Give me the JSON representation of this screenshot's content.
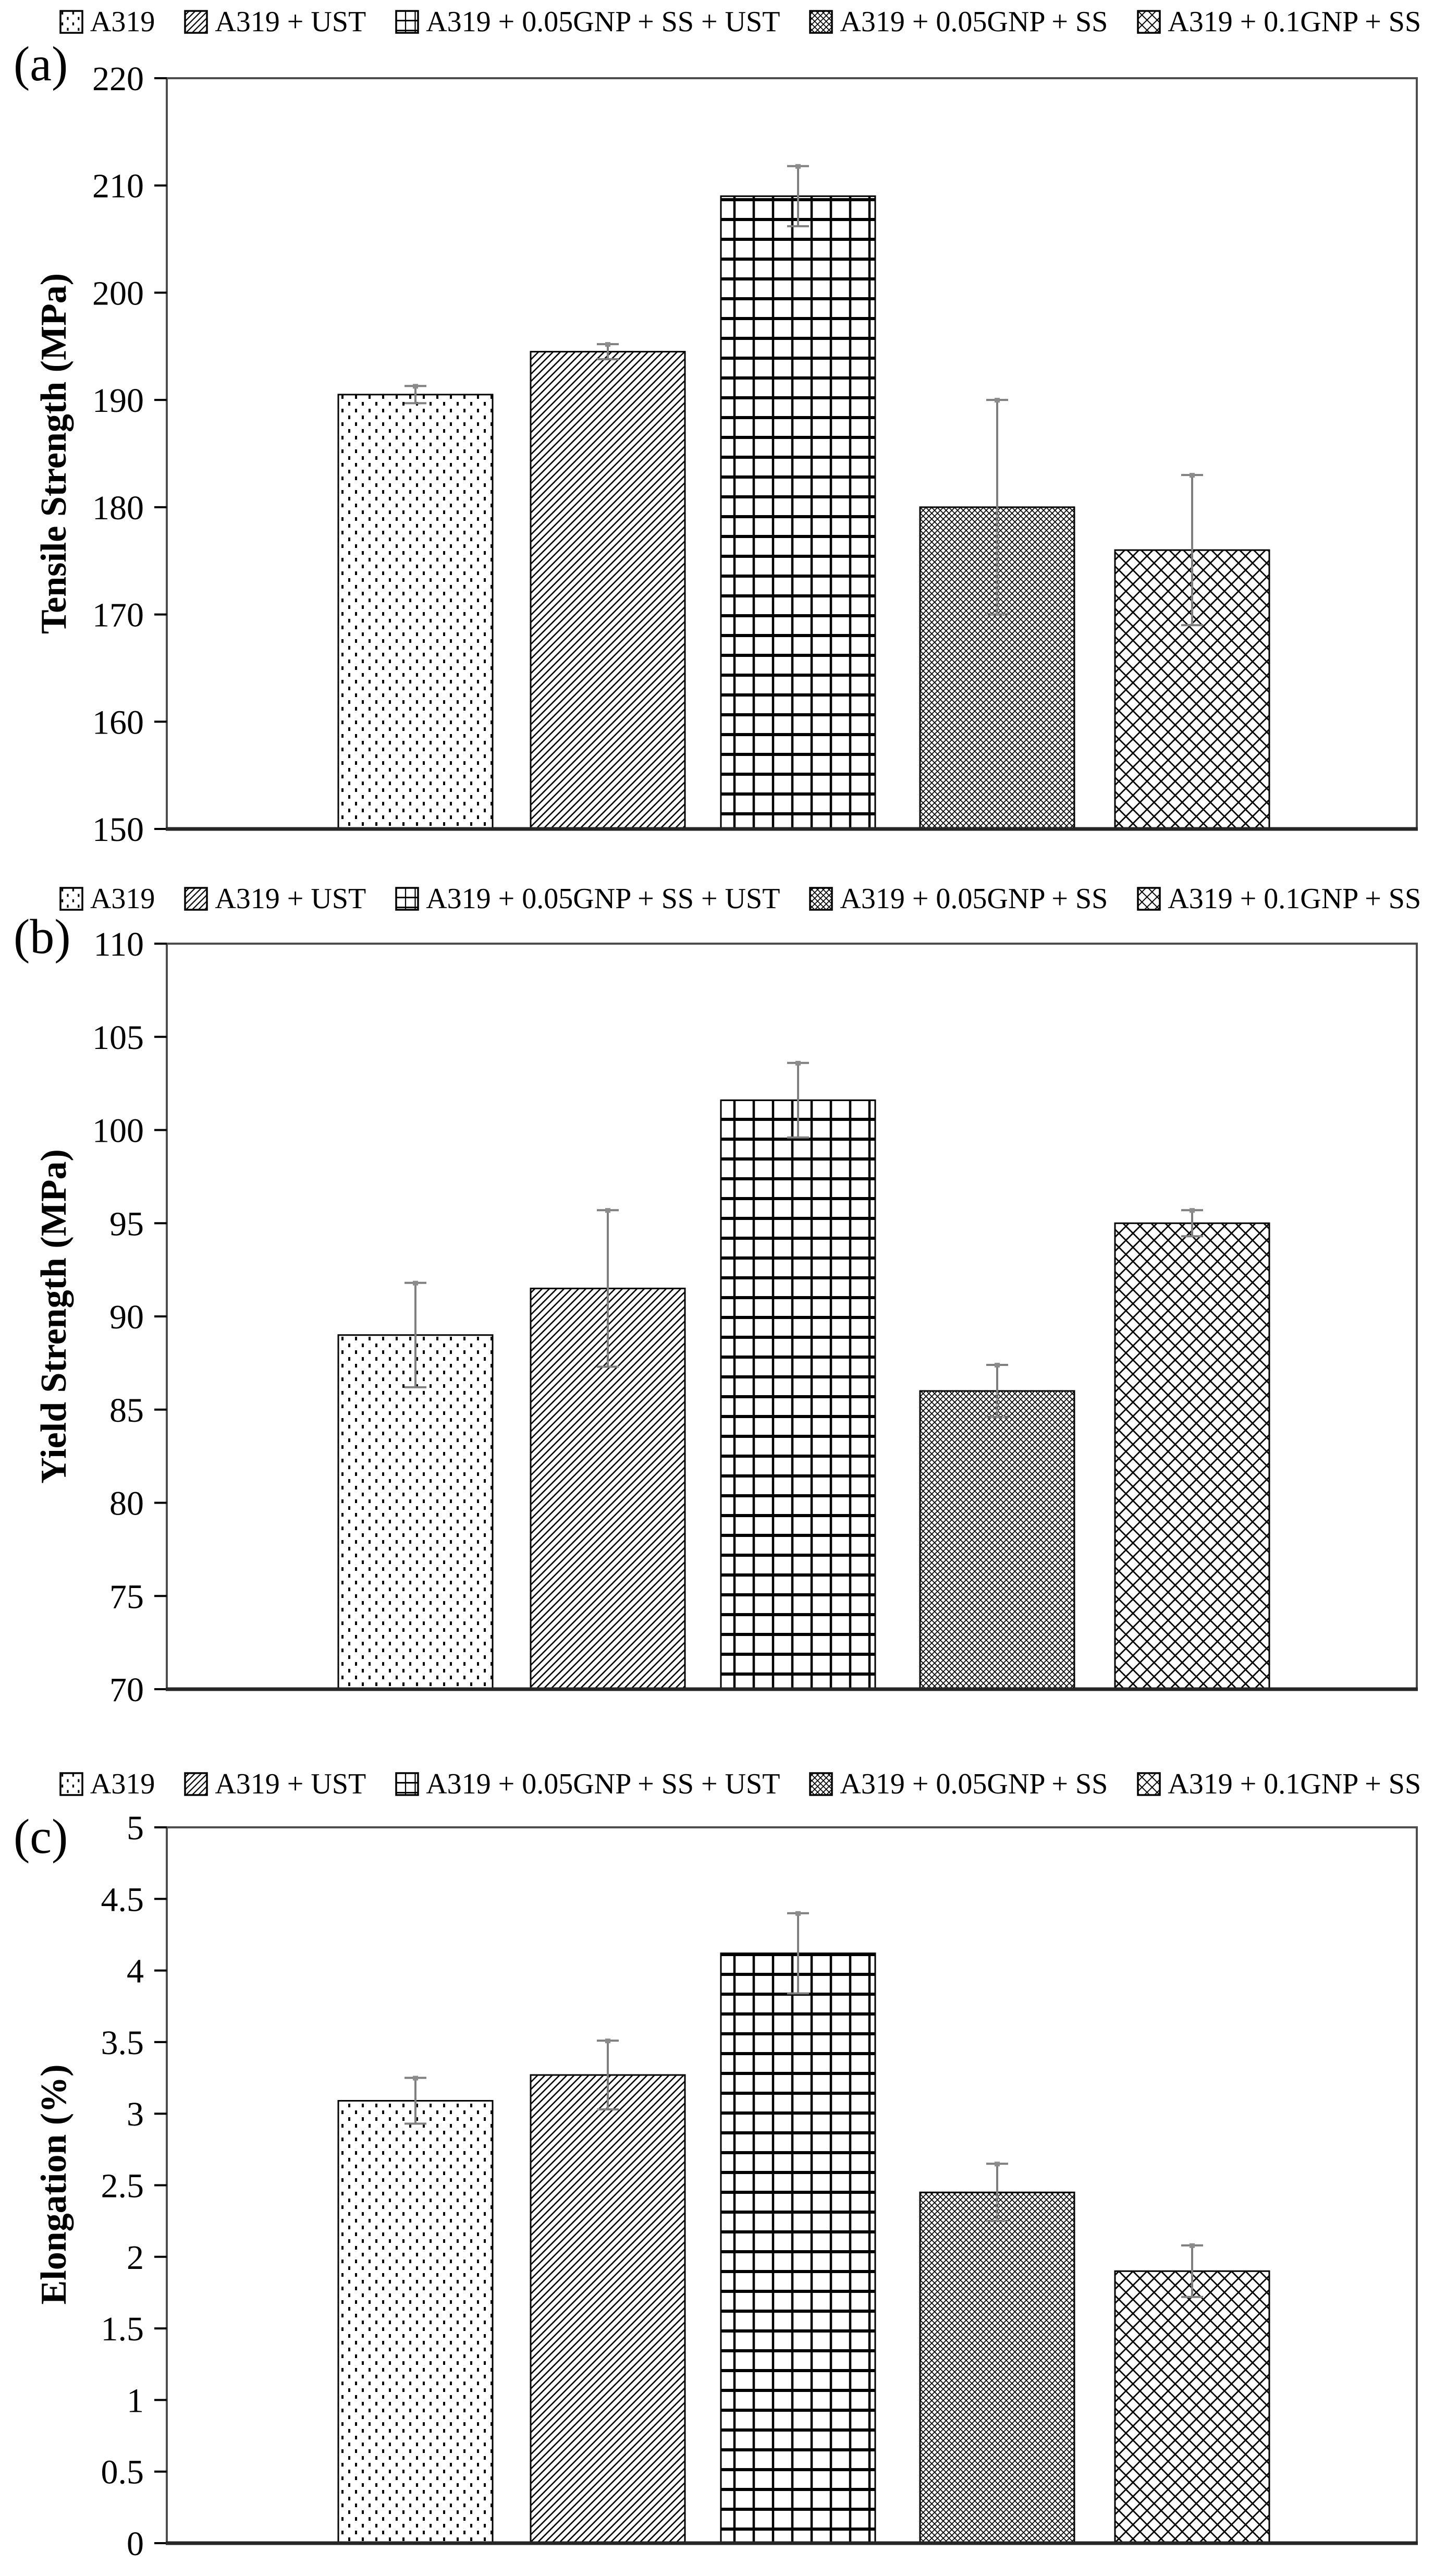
{
  "figure": {
    "description": "Three-panel bar chart figure comparing A319 alloy treatments",
    "legend_items": [
      {
        "label": "A319",
        "pattern": "dots"
      },
      {
        "label": "A319 + UST",
        "pattern": "diagonal"
      },
      {
        "label": "A319 + 0.05GNP + SS + UST",
        "pattern": "grid"
      },
      {
        "label": "A319 + 0.05GNP + SS",
        "pattern": "cross-small"
      },
      {
        "label": "A319 + 0.1GNP + SS",
        "pattern": "cross-large"
      }
    ],
    "colors": {
      "background": "#ffffff",
      "bar_fill": "#ffffff",
      "bar_stroke": "#000000",
      "hatch": "#000000",
      "error_bar": "#7f7f7f",
      "frame": "#4d4d4d",
      "axis": "#262626",
      "text": "#000000"
    }
  },
  "chart_data": [
    {
      "type": "bar",
      "panel_label": "(a)",
      "title": "",
      "xlabel": "",
      "ylabel": "Tensile Strength (MPa)",
      "ylim": [
        150,
        220
      ],
      "ytick_step": 10,
      "ytick_labels": [
        "150",
        "160",
        "170",
        "180",
        "190",
        "200",
        "210",
        "220"
      ],
      "grid": false,
      "legend_position": "top",
      "categories": [
        "A319",
        "A319 + UST",
        "A319 + 0.05GNP + SS + UST",
        "A319 + 0.05GNP + SS",
        "A319 + 0.1GNP + SS"
      ],
      "values": [
        190.5,
        194.5,
        209,
        180,
        176
      ],
      "error_plus": [
        0.8,
        0.7,
        2.8,
        10,
        7
      ],
      "error_minus": [
        0.8,
        0.7,
        2.8,
        10,
        7
      ]
    },
    {
      "type": "bar",
      "panel_label": "(b)",
      "title": "",
      "xlabel": "",
      "ylabel": "Yield Strength (MPa)",
      "ylim": [
        70,
        110
      ],
      "ytick_step": 5,
      "ytick_labels": [
        "70",
        "75",
        "80",
        "85",
        "90",
        "95",
        "100",
        "105",
        "110"
      ],
      "grid": false,
      "legend_position": "top",
      "categories": [
        "A319",
        "A319 + UST",
        "A319 + 0.05GNP + SS + UST",
        "A319 + 0.05GNP + SS",
        "A319 + 0.1GNP + SS"
      ],
      "values": [
        89,
        91.5,
        101.6,
        86,
        95
      ],
      "error_plus": [
        2.8,
        4.2,
        2.0,
        1.4,
        0.7
      ],
      "error_minus": [
        2.8,
        4.2,
        2.0,
        1.4,
        0.7
      ]
    },
    {
      "type": "bar",
      "panel_label": "(c)",
      "title": "",
      "xlabel": "",
      "ylabel": "Elongation (%)",
      "ylim": [
        0,
        5
      ],
      "ytick_step": 0.5,
      "ytick_labels": [
        "0",
        "0.5",
        "1",
        "1.5",
        "2",
        "2.5",
        "3",
        "3.5",
        "4",
        "4.5",
        "5"
      ],
      "grid": false,
      "legend_position": "top",
      "categories": [
        "A319",
        "A319 + UST",
        "A319 + 0.05GNP + SS + UST",
        "A319 + 0.05GNP + SS",
        "A319 + 0.1GNP + SS"
      ],
      "values": [
        3.09,
        3.27,
        4.12,
        2.45,
        1.9
      ],
      "error_plus": [
        0.16,
        0.24,
        0.28,
        0.2,
        0.18
      ],
      "error_minus": [
        0.16,
        0.24,
        0.28,
        0.2,
        0.18
      ]
    }
  ]
}
